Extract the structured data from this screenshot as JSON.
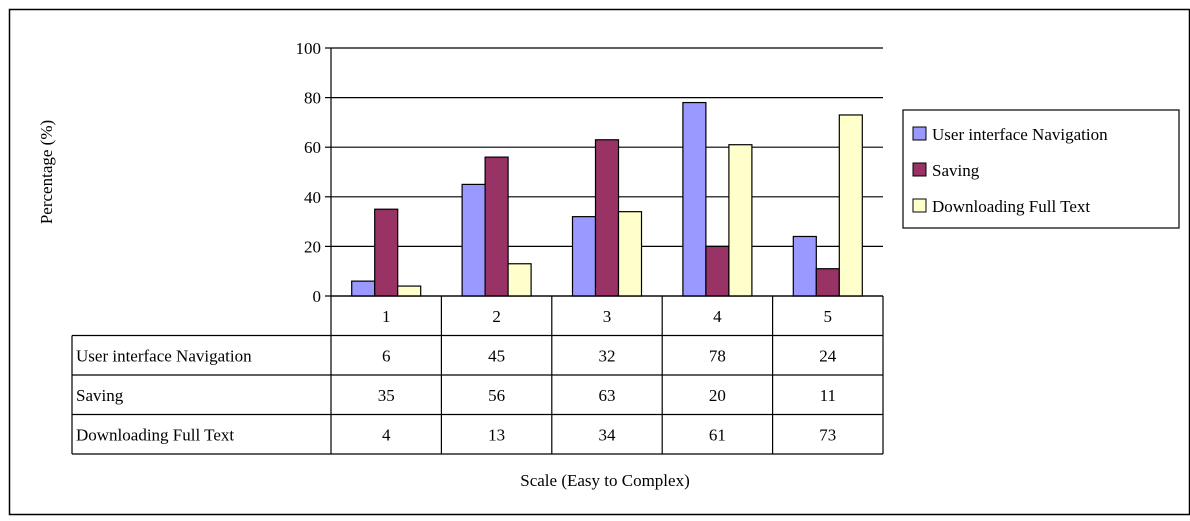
{
  "chart_data": {
    "type": "bar",
    "title": "",
    "xlabel": "Scale (Easy to Complex)",
    "ylabel": "Percentage (%)",
    "ylim": [
      0,
      100
    ],
    "yticks": [
      "0",
      "20",
      "40",
      "60",
      "80",
      "100"
    ],
    "grid": true,
    "legend_position": "right",
    "categories": [
      "1",
      "2",
      "3",
      "4",
      "5"
    ],
    "series": [
      {
        "name": "User interface Navigation",
        "color": "#9999FF",
        "values": [
          6,
          45,
          32,
          78,
          24
        ]
      },
      {
        "name": "Saving",
        "color": "#993366",
        "values": [
          35,
          56,
          63,
          20,
          11
        ]
      },
      {
        "name": "Downloading Full Text",
        "color": "#FFFFCC",
        "values": [
          4,
          13,
          34,
          61,
          73
        ]
      }
    ]
  }
}
